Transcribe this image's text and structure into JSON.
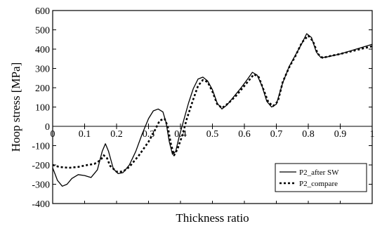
{
  "chart_data": {
    "type": "line",
    "xlabel": "Thickness ratio",
    "ylabel": "Hoop stress [MPa]",
    "xlim": [
      0,
      1
    ],
    "ylim": [
      -400,
      600
    ],
    "x_ticks": [
      0,
      0.1,
      0.2,
      0.3,
      0.4,
      0.5,
      0.6,
      0.7,
      0.8,
      0.9,
      1
    ],
    "x_tick_labels": [
      "0",
      "0.1",
      "0.2",
      "0.3",
      "0.4",
      "0.5",
      "0.6",
      "0.7",
      "0.8",
      "0.9",
      "1"
    ],
    "y_ticks": [
      -400,
      -300,
      -200,
      -100,
      0,
      100,
      200,
      300,
      400,
      500,
      600
    ],
    "y_tick_labels": [
      "-400",
      "-300",
      "-200",
      "-100",
      "0",
      "100",
      "200",
      "300",
      "400",
      "500",
      "600"
    ],
    "grid": false,
    "zero_line": true,
    "legend_position": "bottom-right",
    "series": [
      {
        "name": "P2_after SW",
        "line_style": "solid",
        "color": "#000000",
        "points": [
          [
            0,
            -215
          ],
          [
            0.015,
            -280
          ],
          [
            0.03,
            -310
          ],
          [
            0.045,
            -300
          ],
          [
            0.06,
            -270
          ],
          [
            0.08,
            -250
          ],
          [
            0.1,
            -255
          ],
          [
            0.12,
            -265
          ],
          [
            0.14,
            -225
          ],
          [
            0.155,
            -130
          ],
          [
            0.165,
            -90
          ],
          [
            0.175,
            -130
          ],
          [
            0.19,
            -220
          ],
          [
            0.205,
            -245
          ],
          [
            0.22,
            -240
          ],
          [
            0.24,
            -200
          ],
          [
            0.26,
            -130
          ],
          [
            0.28,
            -40
          ],
          [
            0.3,
            40
          ],
          [
            0.315,
            80
          ],
          [
            0.33,
            90
          ],
          [
            0.345,
            75
          ],
          [
            0.355,
            20
          ],
          [
            0.365,
            -80
          ],
          [
            0.375,
            -145
          ],
          [
            0.385,
            -130
          ],
          [
            0.395,
            -60
          ],
          [
            0.41,
            30
          ],
          [
            0.425,
            120
          ],
          [
            0.44,
            195
          ],
          [
            0.455,
            245
          ],
          [
            0.47,
            255
          ],
          [
            0.485,
            235
          ],
          [
            0.5,
            190
          ],
          [
            0.515,
            120
          ],
          [
            0.53,
            90
          ],
          [
            0.545,
            110
          ],
          [
            0.565,
            150
          ],
          [
            0.59,
            200
          ],
          [
            0.61,
            245
          ],
          [
            0.625,
            280
          ],
          [
            0.64,
            265
          ],
          [
            0.655,
            210
          ],
          [
            0.67,
            130
          ],
          [
            0.685,
            100
          ],
          [
            0.7,
            115
          ],
          [
            0.72,
            225
          ],
          [
            0.74,
            310
          ],
          [
            0.76,
            370
          ],
          [
            0.78,
            430
          ],
          [
            0.795,
            480
          ],
          [
            0.81,
            460
          ],
          [
            0.825,
            385
          ],
          [
            0.84,
            355
          ],
          [
            0.86,
            360
          ],
          [
            0.9,
            375
          ],
          [
            0.95,
            400
          ],
          [
            1,
            425
          ]
        ]
      },
      {
        "name": "P2_compare",
        "line_style": "dotted",
        "color": "#000000",
        "points": [
          [
            0,
            -200
          ],
          [
            0.02,
            -210
          ],
          [
            0.05,
            -215
          ],
          [
            0.08,
            -210
          ],
          [
            0.11,
            -200
          ],
          [
            0.13,
            -195
          ],
          [
            0.15,
            -175
          ],
          [
            0.16,
            -150
          ],
          [
            0.17,
            -165
          ],
          [
            0.18,
            -205
          ],
          [
            0.2,
            -235
          ],
          [
            0.22,
            -235
          ],
          [
            0.24,
            -210
          ],
          [
            0.27,
            -150
          ],
          [
            0.3,
            -80
          ],
          [
            0.32,
            -20
          ],
          [
            0.335,
            30
          ],
          [
            0.35,
            40
          ],
          [
            0.36,
            0
          ],
          [
            0.37,
            -90
          ],
          [
            0.38,
            -150
          ],
          [
            0.39,
            -120
          ],
          [
            0.405,
            -50
          ],
          [
            0.42,
            40
          ],
          [
            0.44,
            140
          ],
          [
            0.455,
            210
          ],
          [
            0.47,
            240
          ],
          [
            0.485,
            230
          ],
          [
            0.5,
            180
          ],
          [
            0.515,
            115
          ],
          [
            0.53,
            95
          ],
          [
            0.55,
            120
          ],
          [
            0.575,
            160
          ],
          [
            0.6,
            210
          ],
          [
            0.62,
            250
          ],
          [
            0.63,
            270
          ],
          [
            0.645,
            255
          ],
          [
            0.66,
            190
          ],
          [
            0.675,
            125
          ],
          [
            0.69,
            105
          ],
          [
            0.705,
            130
          ],
          [
            0.72,
            230
          ],
          [
            0.74,
            305
          ],
          [
            0.76,
            365
          ],
          [
            0.78,
            435
          ],
          [
            0.8,
            470
          ],
          [
            0.815,
            440
          ],
          [
            0.83,
            375
          ],
          [
            0.845,
            355
          ],
          [
            0.87,
            365
          ],
          [
            0.9,
            375
          ],
          [
            0.95,
            395
          ],
          [
            1,
            415
          ]
        ]
      }
    ]
  }
}
